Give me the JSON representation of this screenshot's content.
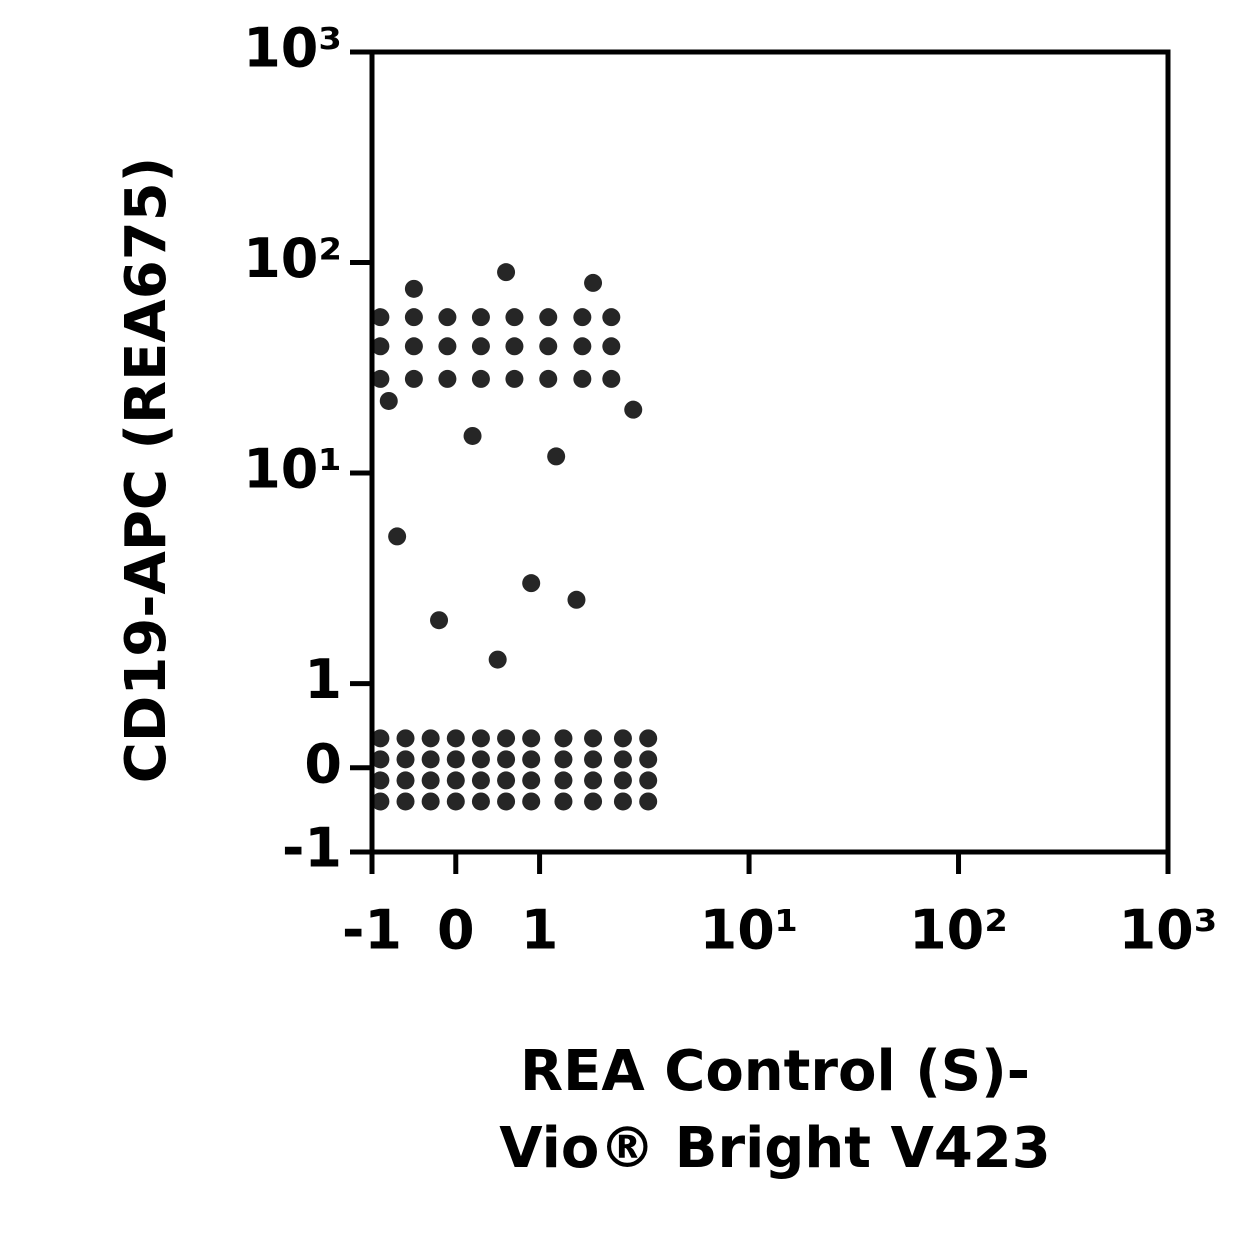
{
  "chart_data": {
    "type": "scatter",
    "xlabel": [
      "REA Control (S)-",
      "Vio® Bright V423"
    ],
    "ylabel": "CD19-APC (REA675)",
    "scale": "biexponential",
    "color": "#000000",
    "xlim": [
      -1,
      1000
    ],
    "ylim": [
      -1,
      1000
    ],
    "xticks": [
      -1,
      0,
      1,
      {
        "value": 10,
        "label": "10¹"
      },
      {
        "value": 100,
        "label": "10²"
      },
      {
        "value": 1000,
        "label": "10³"
      }
    ],
    "yticks": [
      -1,
      0,
      1,
      {
        "value": 10,
        "label": "10¹"
      },
      {
        "value": 100,
        "label": "10²"
      },
      {
        "value": 1000,
        "label": "10³"
      }
    ],
    "x": [
      -0.9,
      -0.9,
      -0.9,
      -0.9,
      -0.6,
      -0.6,
      -0.6,
      -0.6,
      -0.3,
      -0.3,
      -0.3,
      -0.3,
      0,
      0,
      0,
      0,
      0.3,
      0.3,
      0.3,
      0.3,
      0.6,
      0.6,
      0.6,
      0.6,
      0.9,
      0.9,
      0.9,
      0.9,
      1.3,
      1.3,
      1.3,
      1.3,
      1.8,
      1.8,
      1.8,
      1.8,
      2.5,
      2.5,
      2.5,
      2.5,
      3.3,
      3.3,
      3.3,
      3.3,
      -0.9,
      -0.9,
      -0.9,
      -0.5,
      -0.5,
      -0.5,
      -0.1,
      -0.1,
      -0.1,
      0.3,
      0.3,
      0.3,
      0.7,
      0.7,
      0.7,
      1.1,
      1.1,
      1.1,
      1.6,
      1.6,
      1.6,
      2.2,
      2.2,
      2.2,
      -0.5,
      0.6,
      1.8,
      0.2,
      1.2,
      -0.7,
      0.9,
      -0.2,
      1.5,
      0.5,
      2.8,
      -0.8
    ],
    "values": [
      -0.4,
      -0.15,
      0.1,
      0.35,
      -0.4,
      -0.15,
      0.1,
      0.35,
      -0.4,
      -0.15,
      0.1,
      0.35,
      -0.4,
      -0.15,
      0.1,
      0.35,
      -0.4,
      -0.15,
      0.1,
      0.35,
      -0.4,
      -0.15,
      0.1,
      0.35,
      -0.4,
      -0.15,
      0.1,
      0.35,
      -0.4,
      -0.15,
      0.1,
      0.35,
      -0.4,
      -0.15,
      0.1,
      0.35,
      -0.4,
      -0.15,
      0.1,
      0.35,
      -0.4,
      -0.15,
      0.1,
      0.35,
      28,
      40,
      55,
      28,
      40,
      55,
      28,
      40,
      55,
      28,
      40,
      55,
      28,
      40,
      55,
      28,
      40,
      55,
      28,
      40,
      55,
      28,
      40,
      55,
      75,
      90,
      80,
      15,
      12,
      5,
      3,
      2,
      2.5,
      1.3,
      20,
      22
    ]
  }
}
